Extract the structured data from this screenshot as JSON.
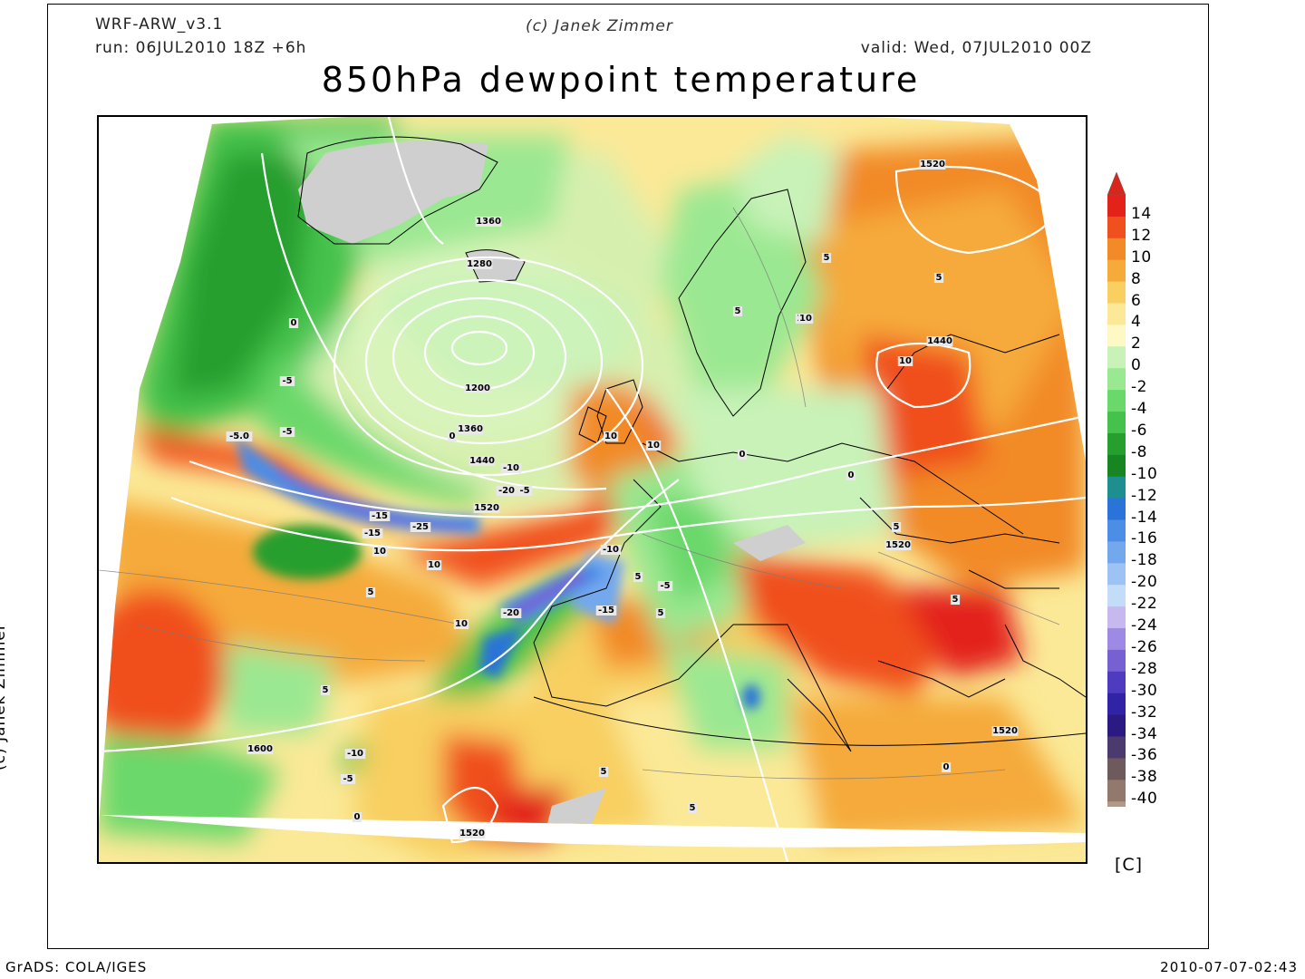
{
  "header": {
    "model": "WRF-ARW_v3.1",
    "run": "run: 06JUL2010 18Z +6h",
    "copyright": "(c) Janek Zimmer",
    "valid": "valid: Wed, 07JUL2010 00Z",
    "title": "850hPa dewpoint temperature"
  },
  "vertical_credit": "(c) Janek Zimmer",
  "footer": {
    "left": "GrADS: COLA/IGES",
    "right": "2010-07-07-02:43"
  },
  "legend": {
    "unit": "[C]",
    "levels": [
      "14",
      "12",
      "10",
      "8",
      "6",
      "4",
      "2",
      "0",
      "-2",
      "-4",
      "-6",
      "-8",
      "-10",
      "-12",
      "-14",
      "-16",
      "-18",
      "-20",
      "-22",
      "-24",
      "-26",
      "-28",
      "-30",
      "-32",
      "-34",
      "-36",
      "-38",
      "-40"
    ],
    "colors": [
      "#e3221a",
      "#f0501e",
      "#f28a28",
      "#f5aa3a",
      "#f8cf60",
      "#fbe997",
      "#fdf8c4",
      "#c8f2b8",
      "#9be892",
      "#6ad86b",
      "#45c24c",
      "#279f2f",
      "#178522",
      "#1e8f8f",
      "#2a73d8",
      "#4c8de6",
      "#73a8ee",
      "#9cc3f4",
      "#c3dcf8",
      "#c8b8f0",
      "#9e8ae4",
      "#7660d2",
      "#4f3bc0",
      "#3023a6",
      "#2a1a82",
      "#4a3a6e",
      "#6e5a5c",
      "#93786e",
      "#b49784"
    ],
    "top_color": "#d9261c",
    "bottom_color": "#a08070"
  },
  "map": {
    "geopotential_labels": [
      "1360",
      "1280",
      "1200",
      "1360",
      "1440",
      "1520",
      "1520",
      "1440",
      "1520",
      "1600",
      "1520",
      "1520"
    ],
    "dewpoint_labels": [
      "-5",
      "-5",
      "0",
      "0",
      "-5.0",
      "-10",
      "-20",
      "-15",
      "-25",
      "-15",
      "10",
      "10",
      "5",
      "10",
      "-10",
      "-5",
      "-5",
      "-15",
      "-20",
      "5",
      "5",
      "10",
      "10",
      "5",
      "0",
      "5",
      "10",
      "0",
      "5",
      "-10",
      "-5",
      "0",
      "5",
      "10",
      "10",
      "5",
      "5",
      "0",
      "5",
      "5"
    ]
  }
}
